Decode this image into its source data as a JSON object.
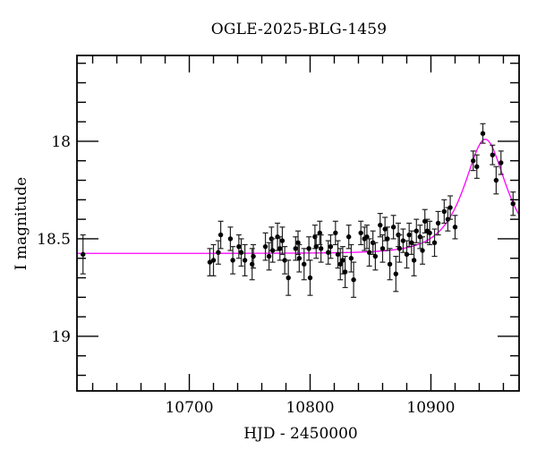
{
  "chart_data": {
    "type": "scatter",
    "title": "OGLE-2025-BLG-1459",
    "xlabel": "HJD - 2450000",
    "ylabel": "I magnitude",
    "legend": "none",
    "grid": false,
    "x_axis": {
      "min": 10607,
      "max": 10973,
      "major_ticks": [
        10700,
        10800,
        10900
      ],
      "major_tick_labels": [
        "10700",
        "10800",
        "10900"
      ],
      "minor_tick_step": 20
    },
    "y_axis": {
      "min": 17.56,
      "max": 19.28,
      "inverted": true,
      "major_ticks": [
        18,
        18.5,
        19
      ],
      "major_tick_labels": [
        "18",
        "18.5",
        "19"
      ],
      "minor_tick_step": 0.1
    },
    "model_curve": {
      "name": "microlensing-model",
      "type": "paczynski",
      "color": "#ff00ff",
      "I0": 18.575,
      "t0": 10945,
      "tE": 26,
      "u0": 0.68
    },
    "points_color": "#000000",
    "errorbar_color": "#222222",
    "points_hjd_mag_err": [
      [
        10612,
        18.58,
        0.1
      ],
      [
        10717,
        18.62,
        0.07
      ],
      [
        10720,
        18.61,
        0.08
      ],
      [
        10724,
        18.57,
        0.06
      ],
      [
        10726,
        18.48,
        0.07
      ],
      [
        10734,
        18.5,
        0.06
      ],
      [
        10736,
        18.61,
        0.07
      ],
      [
        10741,
        18.54,
        0.06
      ],
      [
        10743,
        18.57,
        0.07
      ],
      [
        10746,
        18.61,
        0.08
      ],
      [
        10752,
        18.63,
        0.08
      ],
      [
        10753,
        18.59,
        0.06
      ],
      [
        10763,
        18.54,
        0.07
      ],
      [
        10766,
        18.59,
        0.07
      ],
      [
        10768,
        18.5,
        0.06
      ],
      [
        10769,
        18.56,
        0.06
      ],
      [
        10773,
        18.49,
        0.07
      ],
      [
        10775,
        18.55,
        0.06
      ],
      [
        10777,
        18.51,
        0.07
      ],
      [
        10779,
        18.61,
        0.07
      ],
      [
        10782,
        18.7,
        0.09
      ],
      [
        10788,
        18.55,
        0.06
      ],
      [
        10790,
        18.52,
        0.06
      ],
      [
        10791,
        18.6,
        0.07
      ],
      [
        10795,
        18.63,
        0.08
      ],
      [
        10799,
        18.55,
        0.06
      ],
      [
        10800,
        18.7,
        0.09
      ],
      [
        10804,
        18.49,
        0.06
      ],
      [
        10805,
        18.54,
        0.06
      ],
      [
        10808,
        18.47,
        0.06
      ],
      [
        10809,
        18.55,
        0.07
      ],
      [
        10815,
        18.57,
        0.06
      ],
      [
        10817,
        18.54,
        0.06
      ],
      [
        10821,
        18.47,
        0.06
      ],
      [
        10823,
        18.58,
        0.07
      ],
      [
        10825,
        18.63,
        0.08
      ],
      [
        10827,
        18.61,
        0.07
      ],
      [
        10829,
        18.67,
        0.08
      ],
      [
        10832,
        18.49,
        0.06
      ],
      [
        10834,
        18.6,
        0.07
      ],
      [
        10836,
        18.71,
        0.09
      ],
      [
        10842,
        18.47,
        0.06
      ],
      [
        10845,
        18.5,
        0.06
      ],
      [
        10847,
        18.49,
        0.06
      ],
      [
        10849,
        18.57,
        0.07
      ],
      [
        10852,
        18.52,
        0.06
      ],
      [
        10854,
        18.59,
        0.07
      ],
      [
        10858,
        18.43,
        0.06
      ],
      [
        10860,
        18.55,
        0.07
      ],
      [
        10862,
        18.45,
        0.06
      ],
      [
        10864,
        18.5,
        0.06
      ],
      [
        10866,
        18.63,
        0.08
      ],
      [
        10869,
        18.44,
        0.06
      ],
      [
        10871,
        18.68,
        0.09
      ],
      [
        10873,
        18.48,
        0.06
      ],
      [
        10874,
        18.55,
        0.07
      ],
      [
        10877,
        18.51,
        0.06
      ],
      [
        10880,
        18.58,
        0.07
      ],
      [
        10882,
        18.48,
        0.06
      ],
      [
        10884,
        18.52,
        0.06
      ],
      [
        10886,
        18.61,
        0.08
      ],
      [
        10888,
        18.46,
        0.06
      ],
      [
        10891,
        18.49,
        0.06
      ],
      [
        10893,
        18.56,
        0.07
      ],
      [
        10895,
        18.41,
        0.06
      ],
      [
        10897,
        18.46,
        0.06
      ],
      [
        10899,
        18.47,
        0.06
      ],
      [
        10903,
        18.52,
        0.07
      ],
      [
        10906,
        18.42,
        0.06
      ],
      [
        10911,
        18.36,
        0.06
      ],
      [
        10914,
        18.4,
        0.06
      ],
      [
        10916,
        18.34,
        0.06
      ],
      [
        10920,
        18.44,
        0.06
      ],
      [
        10935,
        18.1,
        0.05
      ],
      [
        10938,
        18.13,
        0.06
      ],
      [
        10943,
        17.96,
        0.05
      ],
      [
        10951,
        18.07,
        0.05
      ],
      [
        10954,
        18.2,
        0.07
      ],
      [
        10958,
        18.11,
        0.06
      ],
      [
        10968,
        18.32,
        0.06
      ]
    ]
  }
}
